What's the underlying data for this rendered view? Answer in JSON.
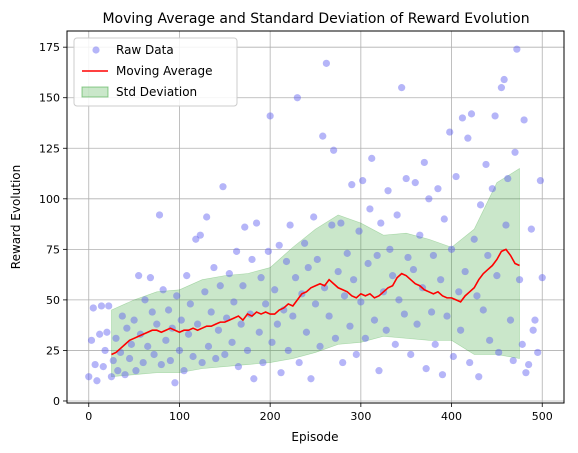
{
  "chart_data": {
    "type": "scatter",
    "title": "Moving Average and Standard Deviation of Reward Evolution",
    "xlabel": "Episode",
    "ylabel": "Reward Evolution",
    "xlim": [
      -24,
      524
    ],
    "ylim": [
      -1,
      183
    ],
    "grid": true,
    "legend_placement": "top-left",
    "xticks": [
      0,
      100,
      200,
      300,
      400,
      500
    ],
    "yticks": [
      0,
      25,
      50,
      75,
      100,
      125,
      150,
      175
    ],
    "legend": [
      {
        "label": "Raw Data",
        "kind": "marker",
        "color": "#6666ee"
      },
      {
        "label": "Moving Average",
        "kind": "line",
        "color": "#ff0000"
      },
      {
        "label": "Std Deviation",
        "kind": "patch",
        "color": "#2ca02c"
      }
    ],
    "colors": {
      "raw": "#5b5bf0",
      "moving_average": "#ff0000",
      "std_band": "#2ca02c",
      "grid": "#b0b0b0"
    },
    "series": [
      {
        "name": "Raw Data",
        "type": "scatter",
        "points": [
          [
            0,
            12
          ],
          [
            3,
            30
          ],
          [
            5,
            46
          ],
          [
            7,
            18
          ],
          [
            9,
            10
          ],
          [
            12,
            33
          ],
          [
            14,
            47
          ],
          [
            16,
            17
          ],
          [
            18,
            25
          ],
          [
            20,
            34
          ],
          [
            22,
            47
          ],
          [
            25,
            12
          ],
          [
            27,
            20
          ],
          [
            30,
            31
          ],
          [
            32,
            15
          ],
          [
            35,
            24
          ],
          [
            37,
            42
          ],
          [
            40,
            13
          ],
          [
            42,
            36
          ],
          [
            45,
            21
          ],
          [
            47,
            28
          ],
          [
            50,
            40
          ],
          [
            52,
            15
          ],
          [
            55,
            62
          ],
          [
            57,
            33
          ],
          [
            60,
            19
          ],
          [
            62,
            50
          ],
          [
            65,
            27
          ],
          [
            68,
            61
          ],
          [
            70,
            44
          ],
          [
            72,
            23
          ],
          [
            75,
            38
          ],
          [
            78,
            92
          ],
          [
            80,
            18
          ],
          [
            82,
            55
          ],
          [
            85,
            30
          ],
          [
            88,
            45
          ],
          [
            90,
            20
          ],
          [
            92,
            36
          ],
          [
            95,
            9
          ],
          [
            97,
            52
          ],
          [
            100,
            25
          ],
          [
            102,
            40
          ],
          [
            105,
            15
          ],
          [
            108,
            62
          ],
          [
            110,
            33
          ],
          [
            112,
            48
          ],
          [
            115,
            22
          ],
          [
            118,
            80
          ],
          [
            120,
            38
          ],
          [
            123,
            82
          ],
          [
            125,
            19
          ],
          [
            128,
            54
          ],
          [
            130,
            91
          ],
          [
            132,
            27
          ],
          [
            135,
            44
          ],
          [
            138,
            66
          ],
          [
            140,
            21
          ],
          [
            143,
            35
          ],
          [
            145,
            57
          ],
          [
            148,
            106
          ],
          [
            150,
            23
          ],
          [
            152,
            41
          ],
          [
            155,
            63
          ],
          [
            158,
            29
          ],
          [
            160,
            49
          ],
          [
            163,
            74
          ],
          [
            165,
            17
          ],
          [
            168,
            38
          ],
          [
            170,
            57
          ],
          [
            172,
            86
          ],
          [
            175,
            25
          ],
          [
            178,
            43
          ],
          [
            180,
            70
          ],
          [
            182,
            11
          ],
          [
            185,
            88
          ],
          [
            188,
            34
          ],
          [
            190,
            61
          ],
          [
            192,
            19
          ],
          [
            195,
            48
          ],
          [
            198,
            74
          ],
          [
            200,
            141
          ],
          [
            202,
            29
          ],
          [
            205,
            55
          ],
          [
            208,
            38
          ],
          [
            210,
            77
          ],
          [
            212,
            14
          ],
          [
            215,
            45
          ],
          [
            218,
            69
          ],
          [
            220,
            25
          ],
          [
            222,
            87
          ],
          [
            225,
            42
          ],
          [
            228,
            61
          ],
          [
            230,
            150
          ],
          [
            232,
            19
          ],
          [
            235,
            53
          ],
          [
            238,
            78
          ],
          [
            240,
            34
          ],
          [
            242,
            66
          ],
          [
            245,
            11
          ],
          [
            248,
            91
          ],
          [
            250,
            48
          ],
          [
            252,
            70
          ],
          [
            255,
            27
          ],
          [
            258,
            131
          ],
          [
            260,
            56
          ],
          [
            262,
            167
          ],
          [
            265,
            42
          ],
          [
            268,
            87
          ],
          [
            270,
            124
          ],
          [
            272,
            31
          ],
          [
            275,
            64
          ],
          [
            278,
            88
          ],
          [
            280,
            19
          ],
          [
            282,
            52
          ],
          [
            285,
            73
          ],
          [
            288,
            37
          ],
          [
            290,
            107
          ],
          [
            292,
            60
          ],
          [
            295,
            23
          ],
          [
            298,
            84
          ],
          [
            300,
            49
          ],
          [
            302,
            109
          ],
          [
            305,
            31
          ],
          [
            308,
            68
          ],
          [
            310,
            95
          ],
          [
            312,
            120
          ],
          [
            315,
            40
          ],
          [
            318,
            72
          ],
          [
            320,
            15
          ],
          [
            322,
            88
          ],
          [
            325,
            54
          ],
          [
            328,
            35
          ],
          [
            330,
            104
          ],
          [
            332,
            75
          ],
          [
            335,
            62
          ],
          [
            338,
            28
          ],
          [
            340,
            92
          ],
          [
            342,
            50
          ],
          [
            345,
            155
          ],
          [
            348,
            43
          ],
          [
            350,
            110
          ],
          [
            352,
            71
          ],
          [
            355,
            23
          ],
          [
            358,
            65
          ],
          [
            360,
            108
          ],
          [
            362,
            38
          ],
          [
            365,
            82
          ],
          [
            368,
            56
          ],
          [
            370,
            118
          ],
          [
            372,
            16
          ],
          [
            375,
            100
          ],
          [
            378,
            44
          ],
          [
            380,
            72
          ],
          [
            382,
            28
          ],
          [
            385,
            105
          ],
          [
            388,
            60
          ],
          [
            390,
            13
          ],
          [
            392,
            90
          ],
          [
            395,
            42
          ],
          [
            398,
            133
          ],
          [
            400,
            75
          ],
          [
            402,
            22
          ],
          [
            405,
            111
          ],
          [
            408,
            54
          ],
          [
            410,
            35
          ],
          [
            412,
            140
          ],
          [
            415,
            64
          ],
          [
            418,
            130
          ],
          [
            420,
            19
          ],
          [
            422,
            142
          ],
          [
            425,
            80
          ],
          [
            428,
            52
          ],
          [
            430,
            12
          ],
          [
            432,
            97
          ],
          [
            435,
            45
          ],
          [
            438,
            117
          ],
          [
            440,
            72
          ],
          [
            442,
            30
          ],
          [
            445,
            105
          ],
          [
            448,
            141
          ],
          [
            450,
            62
          ],
          [
            452,
            24
          ],
          [
            455,
            155
          ],
          [
            458,
            159
          ],
          [
            460,
            87
          ],
          [
            462,
            110
          ],
          [
            465,
            40
          ],
          [
            468,
            20
          ],
          [
            470,
            123
          ],
          [
            472,
            174
          ],
          [
            475,
            60
          ],
          [
            478,
            28
          ],
          [
            480,
            139
          ],
          [
            482,
            14
          ],
          [
            485,
            18
          ],
          [
            488,
            85
          ],
          [
            490,
            35
          ],
          [
            492,
            40
          ],
          [
            495,
            24
          ],
          [
            498,
            109
          ],
          [
            500,
            61
          ]
        ]
      },
      {
        "name": "Moving Average",
        "type": "line",
        "points": [
          [
            25,
            23
          ],
          [
            30,
            24
          ],
          [
            35,
            26
          ],
          [
            40,
            28
          ],
          [
            45,
            30
          ],
          [
            50,
            31
          ],
          [
            55,
            32
          ],
          [
            60,
            33
          ],
          [
            65,
            34
          ],
          [
            70,
            35
          ],
          [
            75,
            35
          ],
          [
            80,
            34
          ],
          [
            85,
            35
          ],
          [
            90,
            36
          ],
          [
            95,
            35
          ],
          [
            100,
            34
          ],
          [
            105,
            35
          ],
          [
            110,
            35
          ],
          [
            115,
            36
          ],
          [
            120,
            35
          ],
          [
            125,
            36
          ],
          [
            130,
            37
          ],
          [
            135,
            37
          ],
          [
            140,
            38
          ],
          [
            145,
            39
          ],
          [
            150,
            39
          ],
          [
            155,
            40
          ],
          [
            160,
            41
          ],
          [
            165,
            42
          ],
          [
            170,
            40
          ],
          [
            175,
            43
          ],
          [
            180,
            42
          ],
          [
            185,
            44
          ],
          [
            190,
            43
          ],
          [
            195,
            44
          ],
          [
            200,
            43
          ],
          [
            205,
            43
          ],
          [
            210,
            45
          ],
          [
            215,
            46
          ],
          [
            220,
            48
          ],
          [
            225,
            47
          ],
          [
            230,
            50
          ],
          [
            235,
            53
          ],
          [
            240,
            54
          ],
          [
            245,
            56
          ],
          [
            250,
            57
          ],
          [
            255,
            58
          ],
          [
            260,
            57
          ],
          [
            265,
            60
          ],
          [
            270,
            58
          ],
          [
            275,
            56
          ],
          [
            280,
            55
          ],
          [
            285,
            54
          ],
          [
            290,
            52
          ],
          [
            295,
            51
          ],
          [
            300,
            53
          ],
          [
            305,
            52
          ],
          [
            310,
            53
          ],
          [
            315,
            51
          ],
          [
            320,
            52
          ],
          [
            325,
            54
          ],
          [
            330,
            56
          ],
          [
            335,
            57
          ],
          [
            340,
            61
          ],
          [
            345,
            63
          ],
          [
            350,
            62
          ],
          [
            355,
            60
          ],
          [
            360,
            58
          ],
          [
            365,
            57
          ],
          [
            370,
            55
          ],
          [
            375,
            54
          ],
          [
            380,
            53
          ],
          [
            385,
            54
          ],
          [
            390,
            52
          ],
          [
            395,
            51
          ],
          [
            400,
            51
          ],
          [
            405,
            50
          ],
          [
            410,
            49
          ],
          [
            415,
            52
          ],
          [
            420,
            54
          ],
          [
            425,
            56
          ],
          [
            430,
            60
          ],
          [
            435,
            63
          ],
          [
            440,
            65
          ],
          [
            445,
            67
          ],
          [
            450,
            70
          ],
          [
            455,
            74
          ],
          [
            460,
            75
          ],
          [
            465,
            72
          ],
          [
            470,
            68
          ],
          [
            475,
            67
          ]
        ]
      },
      {
        "name": "Std Deviation",
        "type": "band",
        "x": [
          25,
          50,
          75,
          100,
          125,
          150,
          175,
          200,
          225,
          250,
          275,
          300,
          325,
          350,
          375,
          400,
          425,
          450,
          475
        ],
        "lower": [
          12,
          13,
          14,
          14,
          16,
          17,
          18,
          19,
          21,
          24,
          28,
          29,
          32,
          31,
          30,
          30,
          23,
          23,
          21
        ],
        "upper": [
          45,
          50,
          54,
          55,
          60,
          62,
          63,
          66,
          76,
          85,
          92,
          88,
          82,
          83,
          80,
          76,
          85,
          108,
          115
        ]
      }
    ]
  }
}
